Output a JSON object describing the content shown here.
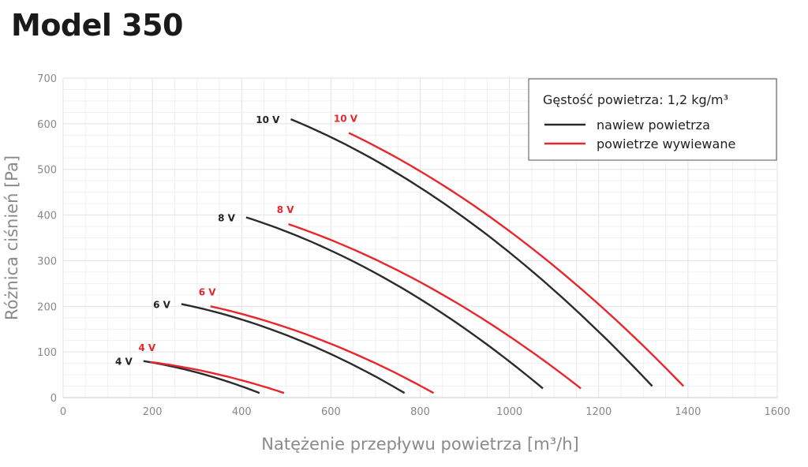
{
  "title": "Model 350",
  "chart_data": {
    "type": "line",
    "xlabel": "Natężenie przepływu powietrza [m³/h]",
    "ylabel": "Różnica ciśnień [Pa]",
    "xlim": [
      0,
      1600
    ],
    "ylim": [
      0,
      700
    ],
    "xticks": [
      "0",
      "200",
      "400",
      "600",
      "800",
      "1000",
      "1200",
      "1400",
      "1600"
    ],
    "yticks": [
      "0",
      "100",
      "200",
      "300",
      "400",
      "500",
      "600",
      "700"
    ],
    "grid": true,
    "legend": {
      "placement": "top-right",
      "title": "Gęstość powietrza: 1,2 kg/m³",
      "entries": [
        {
          "name": "nawiew powietrza",
          "color": "#2b2b2b"
        },
        {
          "name": "powietrze wywiewane",
          "color": "#e8262b"
        }
      ]
    },
    "series": [
      {
        "label": "10 V",
        "group": 0,
        "points": [
          [
            510,
            610
          ],
          [
            700,
            519
          ],
          [
            900,
            393
          ],
          [
            1100,
            235
          ],
          [
            1320,
            25
          ]
        ]
      },
      {
        "label": "10 V",
        "group": 1,
        "points": [
          [
            640,
            580
          ],
          [
            800,
            496
          ],
          [
            1000,
            365
          ],
          [
            1200,
            204
          ],
          [
            1390,
            25
          ]
        ]
      },
      {
        "label": "8 V",
        "group": 0,
        "points": [
          [
            410,
            395
          ],
          [
            600,
            322
          ],
          [
            800,
            216
          ],
          [
            1000,
            79
          ],
          [
            1075,
            20
          ]
        ]
      },
      {
        "label": "8 V",
        "group": 1,
        "points": [
          [
            505,
            380
          ],
          [
            700,
            302
          ],
          [
            900,
            197
          ],
          [
            1100,
            65
          ],
          [
            1160,
            20
          ]
        ]
      },
      {
        "label": "6 V",
        "group": 0,
        "points": [
          [
            265,
            205
          ],
          [
            400,
            171
          ],
          [
            550,
            117
          ],
          [
            700,
            46
          ],
          [
            765,
            10
          ]
        ]
      },
      {
        "label": "6 V",
        "group": 1,
        "points": [
          [
            330,
            200
          ],
          [
            450,
            169
          ],
          [
            600,
            118
          ],
          [
            750,
            51
          ],
          [
            830,
            10
          ]
        ]
      },
      {
        "label": "4 V",
        "group": 0,
        "points": [
          [
            180,
            80
          ],
          [
            250,
            67
          ],
          [
            350,
            41
          ],
          [
            440,
            10
          ]
        ]
      },
      {
        "label": "4 V",
        "group": 1,
        "points": [
          [
            195,
            78
          ],
          [
            300,
            61
          ],
          [
            400,
            38
          ],
          [
            495,
            10
          ]
        ]
      }
    ]
  }
}
